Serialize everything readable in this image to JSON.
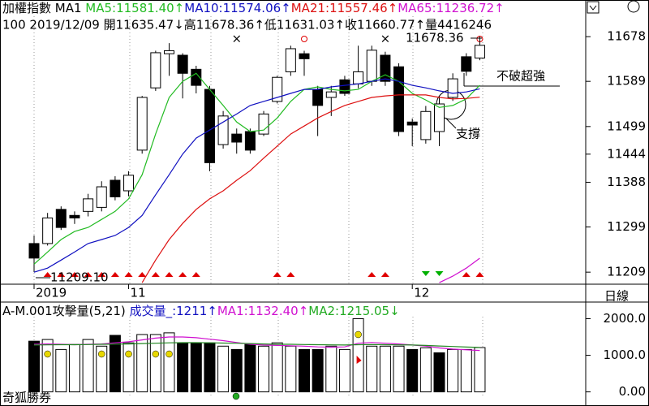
{
  "header": {
    "line1": [
      {
        "text": "加權指數 MA1 ",
        "color": "#000000"
      },
      {
        "text": "MA5:11581.40↑",
        "color": "#22bb22"
      },
      {
        "text": "MA10:11574.06↑",
        "color": "#1010c0"
      },
      {
        "text": "MA21:11557.46↑",
        "color": "#dd1010"
      },
      {
        "text": "MA65:11236.72↑",
        "color": "#d010d0"
      }
    ],
    "line2": "100 2019/12/09 開11635.47↓高11678.36↑低11631.03↑收11660.77↑量4416246",
    "line3": [
      {
        "text": "A-M.001攻擊量(5,21) ",
        "color": "#000000"
      },
      {
        "text": "成交量_:1211↑",
        "color": "#1010c0"
      },
      {
        "text": "MA1:1132.40↑",
        "color": "#d010d0"
      },
      {
        "text": "MA2:1215.05↓",
        "color": "#22aa22"
      }
    ],
    "period": "日線",
    "watermark": "奇狐勝券"
  },
  "chart_data": [
    {
      "type": "candlestick",
      "categories": [
        "2019",
        null,
        null,
        null,
        null,
        null,
        null,
        "11",
        null,
        null,
        null,
        null,
        null,
        null,
        null,
        null,
        null,
        null,
        null,
        null,
        null,
        null,
        null,
        null,
        null,
        null,
        null,
        null,
        "12",
        null,
        null,
        null,
        null,
        null
      ],
      "open": [
        11266,
        11266,
        11334,
        11322,
        11330,
        11338,
        11392,
        11371,
        11452,
        11576,
        11644,
        11641,
        11613,
        11573,
        11463,
        11484,
        11489,
        11484,
        11549,
        11608,
        11644,
        11573,
        11557,
        11592,
        11584,
        11589,
        11641,
        11618,
        11508,
        11473,
        11489,
        11557,
        11638,
        11635.47
      ],
      "high": [
        11282,
        11327,
        11340,
        11330,
        11365,
        11390,
        11400,
        11410,
        11560,
        11650,
        11665,
        11645,
        11620,
        11580,
        11530,
        11495,
        11495,
        11530,
        11600,
        11660,
        11650,
        11580,
        11580,
        11600,
        11660,
        11660,
        11648,
        11625,
        11515,
        11540,
        11560,
        11605,
        11645,
        11678.36
      ],
      "low": [
        11209.1,
        11262,
        11293,
        11305,
        11320,
        11330,
        11352,
        11360,
        11445,
        11570,
        11600,
        11555,
        11565,
        11410,
        11455,
        11445,
        11445,
        11480,
        11545,
        11600,
        11600,
        11480,
        11520,
        11560,
        11575,
        11580,
        11580,
        11480,
        11460,
        11465,
        11460,
        11550,
        11600,
        11631.03
      ],
      "close": [
        11237,
        11317,
        11298,
        11317,
        11355,
        11379,
        11359,
        11402,
        11557,
        11646,
        11650,
        11605,
        11581,
        11427,
        11520,
        11468,
        11452,
        11524,
        11597,
        11654,
        11634,
        11541,
        11568,
        11565,
        11608,
        11651,
        11589,
        11489,
        11502,
        11529,
        11544,
        11594,
        11609,
        11660.77
      ],
      "up_color": "#ffffff",
      "down_color": "#000000",
      "series": [
        {
          "color": "#22bb22",
          "values": [
            11225,
            11249,
            11274,
            11290,
            11298,
            11314,
            11330,
            11355,
            11403,
            11484,
            11557,
            11589,
            11605,
            11573,
            11541,
            11508,
            11489,
            11492,
            11516,
            11549,
            11573,
            11578,
            11573,
            11570,
            11573,
            11589,
            11602,
            11589,
            11565,
            11552,
            11537,
            11541,
            11554,
            11581.4
          ]
        },
        {
          "color": "#1010c0",
          "values": [
            11209,
            11217,
            11233,
            11249,
            11266,
            11274,
            11282,
            11298,
            11322,
            11363,
            11403,
            11444,
            11476,
            11492,
            11508,
            11524,
            11541,
            11549,
            11557,
            11565,
            11573,
            11573,
            11578,
            11581,
            11584,
            11589,
            11594,
            11589,
            11581,
            11576,
            11570,
            11565,
            11568,
            11574.06
          ]
        },
        {
          "color": "#dd1010",
          "values": [
            null,
            null,
            null,
            null,
            null,
            null,
            null,
            null,
            11188,
            11233,
            11274,
            11306,
            11334,
            11355,
            11371,
            11392,
            11411,
            11436,
            11460,
            11484,
            11500,
            11516,
            11529,
            11541,
            11549,
            11557,
            11560,
            11562,
            11562,
            11562,
            11557,
            11554,
            11555,
            11557.46
          ]
        },
        {
          "color": "#d010d0",
          "values": [
            null,
            null,
            null,
            null,
            null,
            null,
            null,
            null,
            null,
            null,
            null,
            null,
            null,
            null,
            null,
            null,
            null,
            null,
            null,
            null,
            null,
            null,
            null,
            null,
            null,
            null,
            null,
            null,
            null,
            null,
            11188,
            11201,
            11217,
            11236.72
          ]
        }
      ],
      "ylim": [
        11185,
        11751
      ],
      "yticks": [
        11678,
        11589,
        11499,
        11444,
        11388,
        11299,
        11209
      ],
      "annotations": {
        "high": "11678.36",
        "low": "11209.10",
        "note": "不破超強",
        "support": "支撐"
      }
    },
    {
      "type": "bar",
      "values": [
        1386,
        1432,
        1159,
        1295,
        1432,
        1250,
        1545,
        1341,
        1568,
        1568,
        1614,
        1341,
        1341,
        1341,
        1250,
        1159,
        1295,
        1250,
        1341,
        1250,
        1159,
        1159,
        1250,
        1159,
        2000,
        1250,
        1250,
        1250,
        1159,
        1205,
        1068,
        1159,
        1159,
        1211
      ],
      "colors": [
        "#000000",
        "#ffffff",
        "#ffffff",
        "#ffffff",
        "#ffffff",
        "#ffffff",
        "#000000",
        "#ffffff",
        "#ffffff",
        "#ffffff",
        "#ffffff",
        "#000000",
        "#000000",
        "#000000",
        "#ffffff",
        "#000000",
        "#000000",
        "#ffffff",
        "#ffffff",
        "#ffffff",
        "#000000",
        "#000000",
        "#ffffff",
        "#ffffff",
        "#ffffff",
        "#ffffff",
        "#ffffff",
        "#ffffff",
        "#000000",
        "#ffffff",
        "#000000",
        "#ffffff",
        "#ffffff",
        "#ffffff"
      ],
      "series": [
        {
          "color": "#d010d0",
          "values": [
            1300,
            1310,
            1300,
            1290,
            1300,
            1310,
            1340,
            1370,
            1420,
            1470,
            1500,
            1500,
            1480,
            1440,
            1400,
            1350,
            1300,
            1280,
            1270,
            1260,
            1250,
            1230,
            1220,
            1230,
            1330,
            1350,
            1330,
            1310,
            1280,
            1250,
            1200,
            1170,
            1150,
            1132.4
          ]
        },
        {
          "color": "#228822",
          "values": [
            1280,
            1285,
            1290,
            1290,
            1295,
            1300,
            1305,
            1310,
            1320,
            1330,
            1340,
            1345,
            1345,
            1340,
            1335,
            1330,
            1320,
            1310,
            1300,
            1300,
            1295,
            1290,
            1285,
            1280,
            1290,
            1295,
            1290,
            1285,
            1280,
            1270,
            1255,
            1240,
            1225,
            1215.05
          ]
        }
      ],
      "ylim": [
        -386,
        2455
      ],
      "yticks": [
        {
          "value": 2000,
          "label": "2000.0"
        },
        {
          "value": 1000,
          "label": "1000.0"
        },
        {
          "value": 0,
          "label": "0.00"
        }
      ]
    }
  ]
}
